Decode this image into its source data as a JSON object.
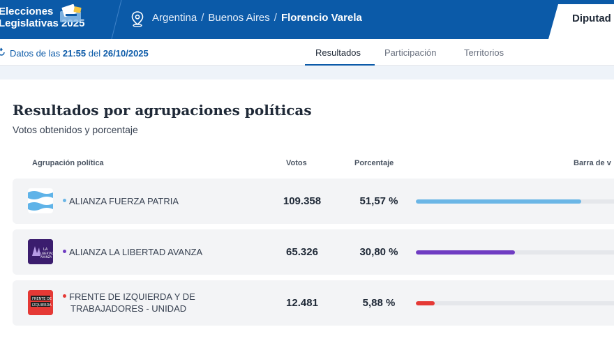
{
  "header": {
    "brand_line1": "Elecciones",
    "brand_line2": "Legislativas 2025",
    "breadcrumb": [
      "Argentina",
      "Buenos Aires",
      "Florencio Varela"
    ],
    "category_tab": "Diputad"
  },
  "subbar": {
    "data_prefix": "Datos de las ",
    "data_time": "21:55",
    "data_mid": " del ",
    "data_date": "26/10/2025",
    "tabs": [
      "Resultados",
      "Participación",
      "Territorios"
    ],
    "active_tab": "Resultados"
  },
  "main": {
    "title": "Resultados por agrupaciones políticas",
    "subtitle": "Votos obtenidos y porcentaje",
    "columns": {
      "party": "Agrupación política",
      "votes": "Votos",
      "percent": "Porcentaje",
      "bar": "Barra de v"
    },
    "rows": [
      {
        "name_line1": "ALIANZA FUERZA PATRIA",
        "name_line2": "",
        "votes": "109.358",
        "percent": "51,57 %",
        "share": 0.5157,
        "color": "#6bb6e6",
        "logo": "argentina-flag-icon"
      },
      {
        "name_line1": "ALIANZA LA LIBERTAD AVANZA",
        "name_line2": "",
        "votes": "65.326",
        "percent": "30,80 %",
        "share": 0.308,
        "color": "#6f3cc2",
        "logo": "libertad-avanza-logo",
        "logo_text": "LA LIBERTAD AVANZA"
      },
      {
        "name_line1": "FRENTE DE IZQUIERDA Y DE",
        "name_line2": "TRABAJADORES - UNIDAD",
        "votes": "12.481",
        "percent": "5,88 %",
        "share": 0.0588,
        "color": "#e53935",
        "logo": "frente-izquierda-logo",
        "logo_text": "FRENTE DE IZQUIERDA"
      }
    ]
  },
  "colors": {
    "primary": "#0b5aa8",
    "row_bg": "#f3f4f6"
  }
}
